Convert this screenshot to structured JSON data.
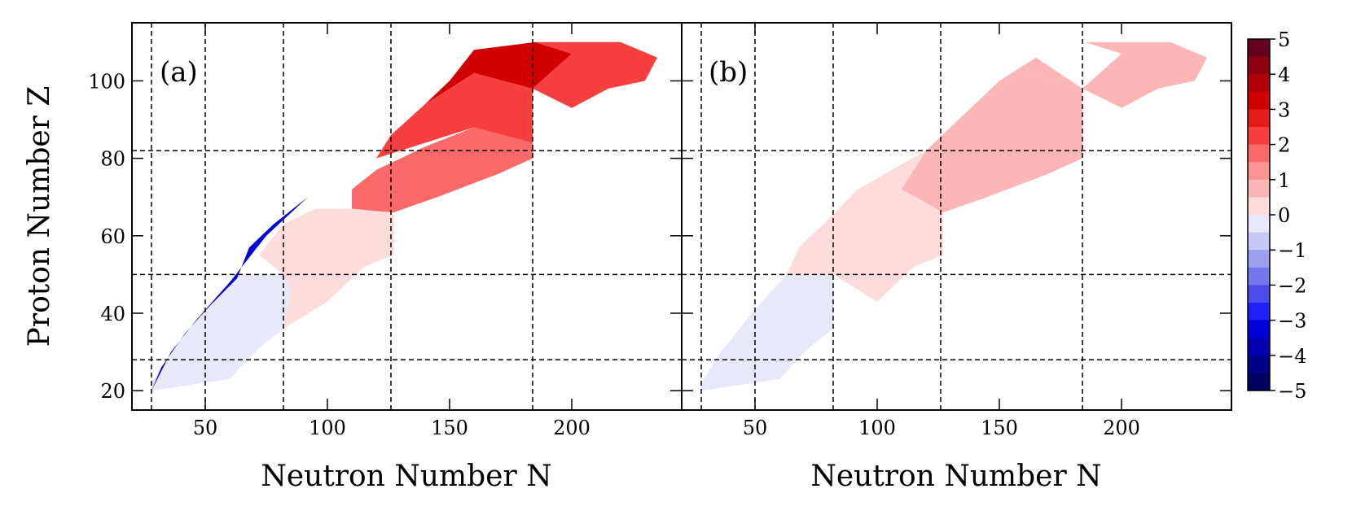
{
  "chart_data": [
    {
      "type": "heatmap",
      "panel_label": "(a)",
      "xlabel": "Neutron Number N",
      "ylabel": "Proton Number Z",
      "xlim": [
        20,
        245
      ],
      "ylim": [
        15,
        115
      ],
      "xticks": [
        50,
        100,
        150,
        200
      ],
      "xtick_labels": [
        "50",
        "100",
        "150",
        "200"
      ],
      "yticks": [
        20,
        40,
        60,
        80,
        100
      ],
      "ytick_labels": [
        "20",
        "40",
        "60",
        "80",
        "100"
      ],
      "magic_numbers_N": [
        28,
        50,
        82,
        126,
        184
      ],
      "magic_numbers_Z": [
        28,
        50,
        82
      ],
      "region_values": [
        {
          "region": "light nuclei Z 20-50, N 28-82",
          "value": -0.4
        },
        {
          "region": "proton-rich edge Z 20-70",
          "value": -3
        },
        {
          "region": "medium nuclei Z 50-65, N 82-126",
          "value": 0.3
        },
        {
          "region": "Z 65-82, N 110-184",
          "value": 1.6
        },
        {
          "region": "Z 82-110, N 126-184",
          "value": 2.2
        },
        {
          "region": "Z 95-110, N 160-200",
          "value": 3.5
        },
        {
          "region": "Z 95-110, N 184-235",
          "value": 2.3
        }
      ]
    },
    {
      "type": "heatmap",
      "panel_label": "(b)",
      "xlabel": "Neutron Number N",
      "xlim": [
        20,
        245
      ],
      "ylim": [
        15,
        115
      ],
      "xticks": [
        50,
        100,
        150,
        200
      ],
      "xtick_labels": [
        "50",
        "100",
        "150",
        "200"
      ],
      "magic_numbers_N": [
        28,
        50,
        82,
        126,
        184
      ],
      "magic_numbers_Z": [
        28,
        50,
        82
      ],
      "region_values": [
        {
          "region": "light nuclei Z 20-50",
          "value": -0.3
        },
        {
          "region": "medium nuclei Z 50-82",
          "value": 0.3
        },
        {
          "region": "heavy nuclei Z 82-110",
          "value": 0.7
        },
        {
          "region": "superheavy Z 95-110, N 184-235",
          "value": 1.0
        }
      ]
    }
  ],
  "colorbar": {
    "min": -5,
    "max": 5,
    "step": 0.5,
    "tick_labels": [
      "5",
      "4",
      "3",
      "2",
      "1",
      "0",
      "−1",
      "−2",
      "−3",
      "−4",
      "−5"
    ],
    "colors": [
      "#66001f",
      "#8c0010",
      "#b2000b",
      "#d10000",
      "#e61a1a",
      "#f73f3f",
      "#fb6a6a",
      "#fc9393",
      "#fdb6b6",
      "#fedcdc",
      "#e8e8fb",
      "#c8c8f7",
      "#9f9ff1",
      "#7676ec",
      "#4b4bee",
      "#1e1ef5",
      "#0000d8",
      "#0000b0",
      "#000088",
      "#000060"
    ]
  }
}
